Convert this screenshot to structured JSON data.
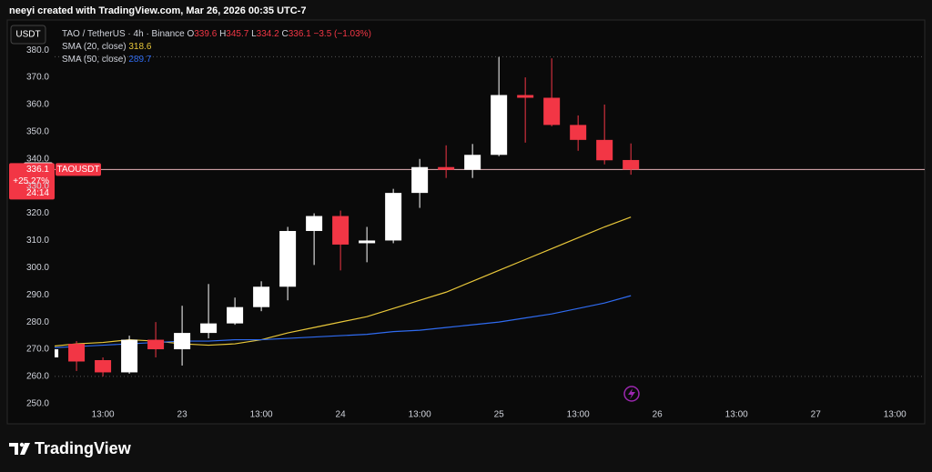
{
  "header": {
    "attribution": "neeyi created with TradingView.com, Mar 26, 2026 00:35 UTC-7",
    "currency": "USDT"
  },
  "chart_data": {
    "type": "candlestick",
    "legend": {
      "symbol": "TAO / TetherUS · 4h · Binance",
      "open_key": "O",
      "high_key": "H",
      "low_key": "L",
      "close_key": "C",
      "change": "−3.5 (−1.03%)"
    },
    "x": [
      -1,
      0,
      1,
      2,
      3,
      4,
      5,
      6,
      7,
      8,
      9,
      10,
      11,
      12,
      13,
      14,
      15,
      16,
      17,
      18,
      19,
      20,
      21
    ],
    "open": [
      267,
      272,
      266,
      261.5,
      273.5,
      270,
      276,
      279.5,
      285.5,
      293,
      313.5,
      319,
      309,
      310,
      327.5,
      337,
      336,
      341.5,
      363.5,
      362.5,
      352.5,
      347,
      339.6
    ],
    "high": [
      271,
      273,
      267,
      275,
      280,
      286,
      294,
      289,
      295,
      315,
      320,
      321,
      315,
      329,
      340,
      345,
      345.5,
      377.5,
      370,
      377,
      356,
      360,
      345.7
    ],
    "low": [
      266,
      262,
      260,
      261,
      267,
      264,
      274,
      279,
      284,
      288,
      301,
      299,
      302,
      309,
      322,
      333,
      333,
      341,
      346,
      352,
      343,
      338,
      334.2
    ],
    "close": [
      270,
      265.5,
      261.5,
      273.5,
      270,
      276,
      279.5,
      285.5,
      293,
      313.5,
      319,
      308.5,
      310,
      327.5,
      337,
      336,
      341.5,
      363.5,
      362.5,
      352.5,
      347,
      339.5,
      336.1
    ],
    "up_color": "#ffffff",
    "down_color": "#f23645",
    "series": [
      {
        "name": "SMA (20, close)",
        "color": "#e8c73a",
        "values": [
          271,
          272,
          272.5,
          273.5,
          273,
          272,
          271.5,
          272,
          273.5,
          276,
          278,
          280,
          282,
          285,
          288,
          291,
          295,
          299,
          303,
          307,
          311,
          315,
          318.6
        ]
      },
      {
        "name": "SMA (50, close)",
        "color": "#2f6bf0",
        "values": [
          270.5,
          271,
          271.5,
          272,
          272.5,
          273,
          273,
          273.5,
          273.5,
          274,
          274.5,
          275,
          275.5,
          276.5,
          277,
          278,
          279,
          280,
          281.5,
          283,
          285,
          287,
          289.7
        ]
      }
    ],
    "price_line": {
      "symbol": "TAOUSDT",
      "change": "+25.27%",
      "countdown": "24:14"
    },
    "marker_price": 336.4,
    "range_lines": [
      377.6,
      260
    ],
    "xlim": [
      -0.83,
      32.13
    ],
    "xticks": [
      {
        "value": 1,
        "label": "13:00"
      },
      {
        "value": 4,
        "label": "23"
      },
      {
        "value": 7,
        "label": "13:00"
      },
      {
        "value": 10,
        "label": "24"
      },
      {
        "value": 13,
        "label": "13:00"
      },
      {
        "value": 16,
        "label": "25"
      },
      {
        "value": 19,
        "label": "13:00"
      },
      {
        "value": 22,
        "label": "26"
      },
      {
        "value": 25,
        "label": "13:00"
      },
      {
        "value": 28,
        "label": "27"
      },
      {
        "value": 31,
        "label": "13:00"
      }
    ],
    "ylim": [
      247.6,
      382.4
    ],
    "yticks": [
      {
        "value": 250,
        "label": "250.0"
      },
      {
        "value": 260,
        "label": "260.0"
      },
      {
        "value": 270,
        "label": "270.0"
      },
      {
        "value": 280,
        "label": "280.0"
      },
      {
        "value": 290,
        "label": "290.0"
      },
      {
        "value": 300,
        "label": "300.0"
      },
      {
        "value": 310,
        "label": "310.0"
      },
      {
        "value": 320,
        "label": "320.0"
      },
      {
        "value": 330,
        "label": "330.0"
      },
      {
        "value": 340,
        "label": "340.0"
      },
      {
        "value": 350,
        "label": "350.0"
      },
      {
        "value": 360,
        "label": "360.0"
      },
      {
        "value": 370,
        "label": "370.0"
      },
      {
        "value": 380,
        "label": "380.0"
      }
    ],
    "grid": false
  },
  "footer": {
    "brand": "TradingView"
  }
}
